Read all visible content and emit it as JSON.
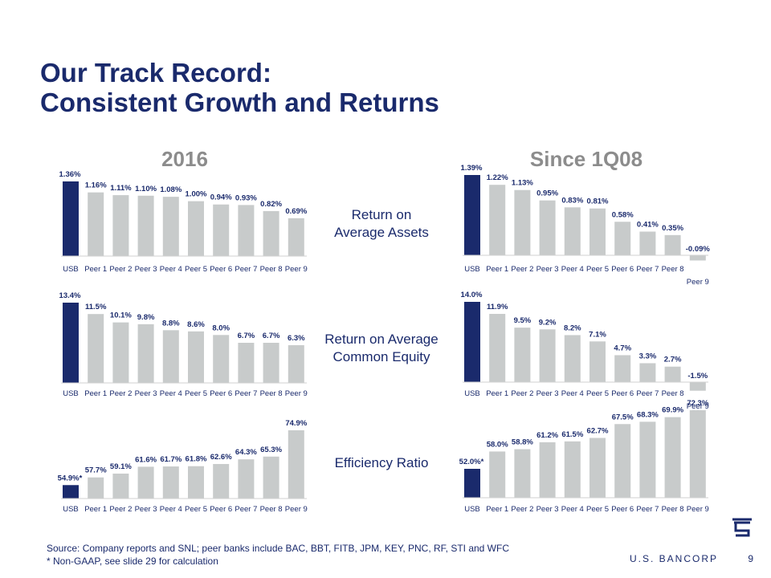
{
  "slide": {
    "title_line1": "Our Track Record:",
    "title_line2": "Consistent Growth and Returns",
    "col_left": "2016",
    "col_right": "Since 1Q08",
    "row1_label_line1": "Return on",
    "row1_label_line2": "Average Assets",
    "row2_label_line1": "Return on Average",
    "row2_label_line2": "Common Equity",
    "row3_label": "Efficiency Ratio",
    "footer_line1": "Source: Company reports and SNL; peer banks include BAC, BBT, FITB, JPM, KEY, PNC, RF, STI and WFC",
    "footer_line2": "* Non-GAAP, see slide 29 for calculation",
    "brand": "U.S. BANCORP",
    "page_number": "9"
  },
  "colors": {
    "highlight": "#1a2a6c",
    "peer": "#c8cbcb",
    "title": "#1a2a6c",
    "heading": "#8c8c8c"
  },
  "chart_data": [
    {
      "type": "bar",
      "panel": "2016 Return on Average Assets",
      "categories": [
        "USB",
        "Peer 1",
        "Peer 2",
        "Peer 3",
        "Peer 4",
        "Peer 5",
        "Peer 6",
        "Peer 7",
        "Peer 8",
        "Peer 9"
      ],
      "values": [
        1.36,
        1.16,
        1.11,
        1.1,
        1.08,
        1.0,
        0.94,
        0.93,
        0.82,
        0.69
      ],
      "labels": [
        "1.36%",
        "1.16%",
        "1.11%",
        "1.10%",
        "1.08%",
        "1.00%",
        "0.94%",
        "0.93%",
        "0.82%",
        "0.69%"
      ]
    },
    {
      "type": "bar",
      "panel": "Since 1Q08 Return on Average Assets",
      "categories": [
        "USB",
        "Peer 1",
        "Peer 2",
        "Peer 3",
        "Peer 4",
        "Peer 5",
        "Peer 6",
        "Peer 7",
        "Peer 8",
        "Peer 9"
      ],
      "values": [
        1.39,
        1.22,
        1.13,
        0.95,
        0.83,
        0.81,
        0.58,
        0.41,
        0.35,
        -0.09
      ],
      "labels": [
        "1.39%",
        "1.22%",
        "1.13%",
        "0.95%",
        "0.83%",
        "0.81%",
        "0.58%",
        "0.41%",
        "0.35%",
        "-0.09%"
      ]
    },
    {
      "type": "bar",
      "panel": "2016 Return on Average Common Equity",
      "categories": [
        "USB",
        "Peer 1",
        "Peer 2",
        "Peer 3",
        "Peer 4",
        "Peer 5",
        "Peer 6",
        "Peer 7",
        "Peer 8",
        "Peer 9"
      ],
      "values": [
        13.4,
        11.5,
        10.1,
        9.8,
        8.8,
        8.6,
        8.0,
        6.7,
        6.7,
        6.3
      ],
      "labels": [
        "13.4%",
        "11.5%",
        "10.1%",
        "9.8%",
        "8.8%",
        "8.6%",
        "8.0%",
        "6.7%",
        "6.7%",
        "6.3%"
      ]
    },
    {
      "type": "bar",
      "panel": "Since 1Q08 Return on Average Common Equity",
      "categories": [
        "USB",
        "Peer 1",
        "Peer 2",
        "Peer 3",
        "Peer 4",
        "Peer 5",
        "Peer 6",
        "Peer 7",
        "Peer 8",
        "Peer 9"
      ],
      "values": [
        14.0,
        11.9,
        9.5,
        9.2,
        8.2,
        7.1,
        4.7,
        3.3,
        2.7,
        -1.5
      ],
      "labels": [
        "14.0%",
        "11.9%",
        "9.5%",
        "9.2%",
        "8.2%",
        "7.1%",
        "4.7%",
        "3.3%",
        "2.7%",
        "-1.5%"
      ]
    },
    {
      "type": "bar",
      "panel": "2016 Efficiency Ratio",
      "categories": [
        "USB",
        "Peer 1",
        "Peer 2",
        "Peer 3",
        "Peer 4",
        "Peer 5",
        "Peer 6",
        "Peer 7",
        "Peer 8",
        "Peer 9"
      ],
      "values": [
        54.9,
        57.7,
        59.1,
        61.6,
        61.7,
        61.8,
        62.6,
        64.3,
        65.3,
        74.9
      ],
      "labels": [
        "54.9%*",
        "57.7%",
        "59.1%",
        "61.6%",
        "61.7%",
        "61.8%",
        "62.6%",
        "64.3%",
        "65.3%",
        "74.9%"
      ]
    },
    {
      "type": "bar",
      "panel": "Since 1Q08 Efficiency Ratio",
      "categories": [
        "USB",
        "Peer 1",
        "Peer 2",
        "Peer 3",
        "Peer 4",
        "Peer 5",
        "Peer 6",
        "Peer 7",
        "Peer 8",
        "Peer 9"
      ],
      "values": [
        52.0,
        58.0,
        58.8,
        61.2,
        61.5,
        62.7,
        67.5,
        68.3,
        69.9,
        72.3
      ],
      "labels": [
        "52.0%*",
        "58.0%",
        "58.8%",
        "61.2%",
        "61.5%",
        "62.7%",
        "67.5%",
        "68.3%",
        "69.9%",
        "72.3%"
      ]
    }
  ]
}
